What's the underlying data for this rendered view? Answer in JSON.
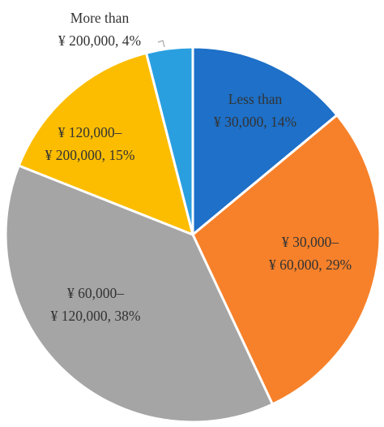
{
  "chart_data": {
    "type": "pie",
    "title": "",
    "start_angle_deg": 0,
    "direction": "clockwise",
    "slices": [
      {
        "line1": "Less than",
        "line2": "¥ 30,000, 14%",
        "value": 14,
        "color": "#1e70c8"
      },
      {
        "line1": "¥ 30,000–",
        "line2": "¥ 60,000, 29%",
        "value": 29,
        "color": "#f7812a"
      },
      {
        "line1": "¥ 60,000–",
        "line2": "¥ 120,000, 38%",
        "value": 38,
        "color": "#a5a5a5"
      },
      {
        "line1": "¥ 120,000–",
        "line2": "¥ 200,000, 15%",
        "value": 15,
        "color": "#fcbd00"
      },
      {
        "line1": "More than",
        "line2": "¥ 200,000, 4%",
        "value": 4,
        "color": "#2a9fe0"
      }
    ]
  }
}
